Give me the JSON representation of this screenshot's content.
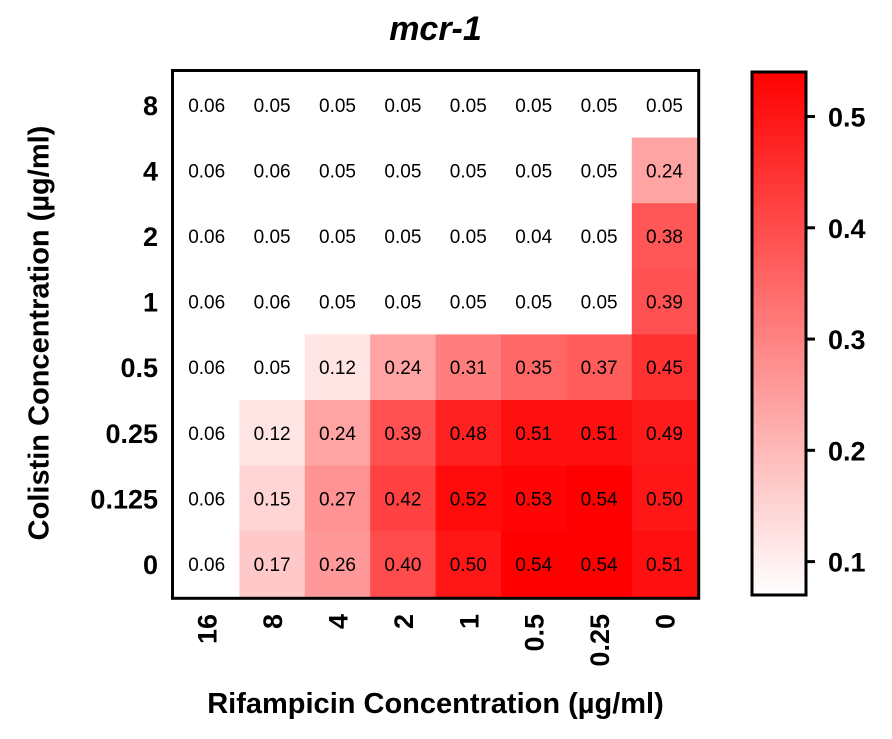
{
  "chart_data": {
    "type": "heatmap",
    "title": "mcr-1",
    "xlabel": "Rifampicin Concentration (µg/ml)",
    "ylabel": "Colistin Concentration (µg/ml)",
    "x_categories": [
      "16",
      "8",
      "4",
      "2",
      "1",
      "0.5",
      "0.25",
      "0"
    ],
    "y_categories": [
      "8",
      "4",
      "2",
      "1",
      "0.5",
      "0.25",
      "0.125",
      "0"
    ],
    "values": [
      [
        "0.06",
        "0.05",
        "0.05",
        "0.05",
        "0.05",
        "0.05",
        "0.05",
        "0.05"
      ],
      [
        "0.06",
        "0.06",
        "0.05",
        "0.05",
        "0.05",
        "0.05",
        "0.05",
        "0.24"
      ],
      [
        "0.06",
        "0.05",
        "0.05",
        "0.05",
        "0.05",
        "0.04",
        "0.05",
        "0.38"
      ],
      [
        "0.06",
        "0.06",
        "0.05",
        "0.05",
        "0.05",
        "0.05",
        "0.05",
        "0.39"
      ],
      [
        "0.06",
        "0.05",
        "0.12",
        "0.24",
        "0.31",
        "0.35",
        "0.37",
        "0.45"
      ],
      [
        "0.06",
        "0.12",
        "0.24",
        "0.39",
        "0.48",
        "0.51",
        "0.51",
        "0.49"
      ],
      [
        "0.06",
        "0.15",
        "0.27",
        "0.42",
        "0.52",
        "0.53",
        "0.54",
        "0.50"
      ],
      [
        "0.06",
        "0.17",
        "0.26",
        "0.40",
        "0.50",
        "0.54",
        "0.54",
        "0.51"
      ]
    ],
    "colorbar": {
      "min": 0.07,
      "max": 0.54,
      "ticks": [
        "0.1",
        "0.2",
        "0.3",
        "0.4",
        "0.5"
      ],
      "low_color": "#ffffff",
      "high_color": "#ff0000"
    }
  }
}
